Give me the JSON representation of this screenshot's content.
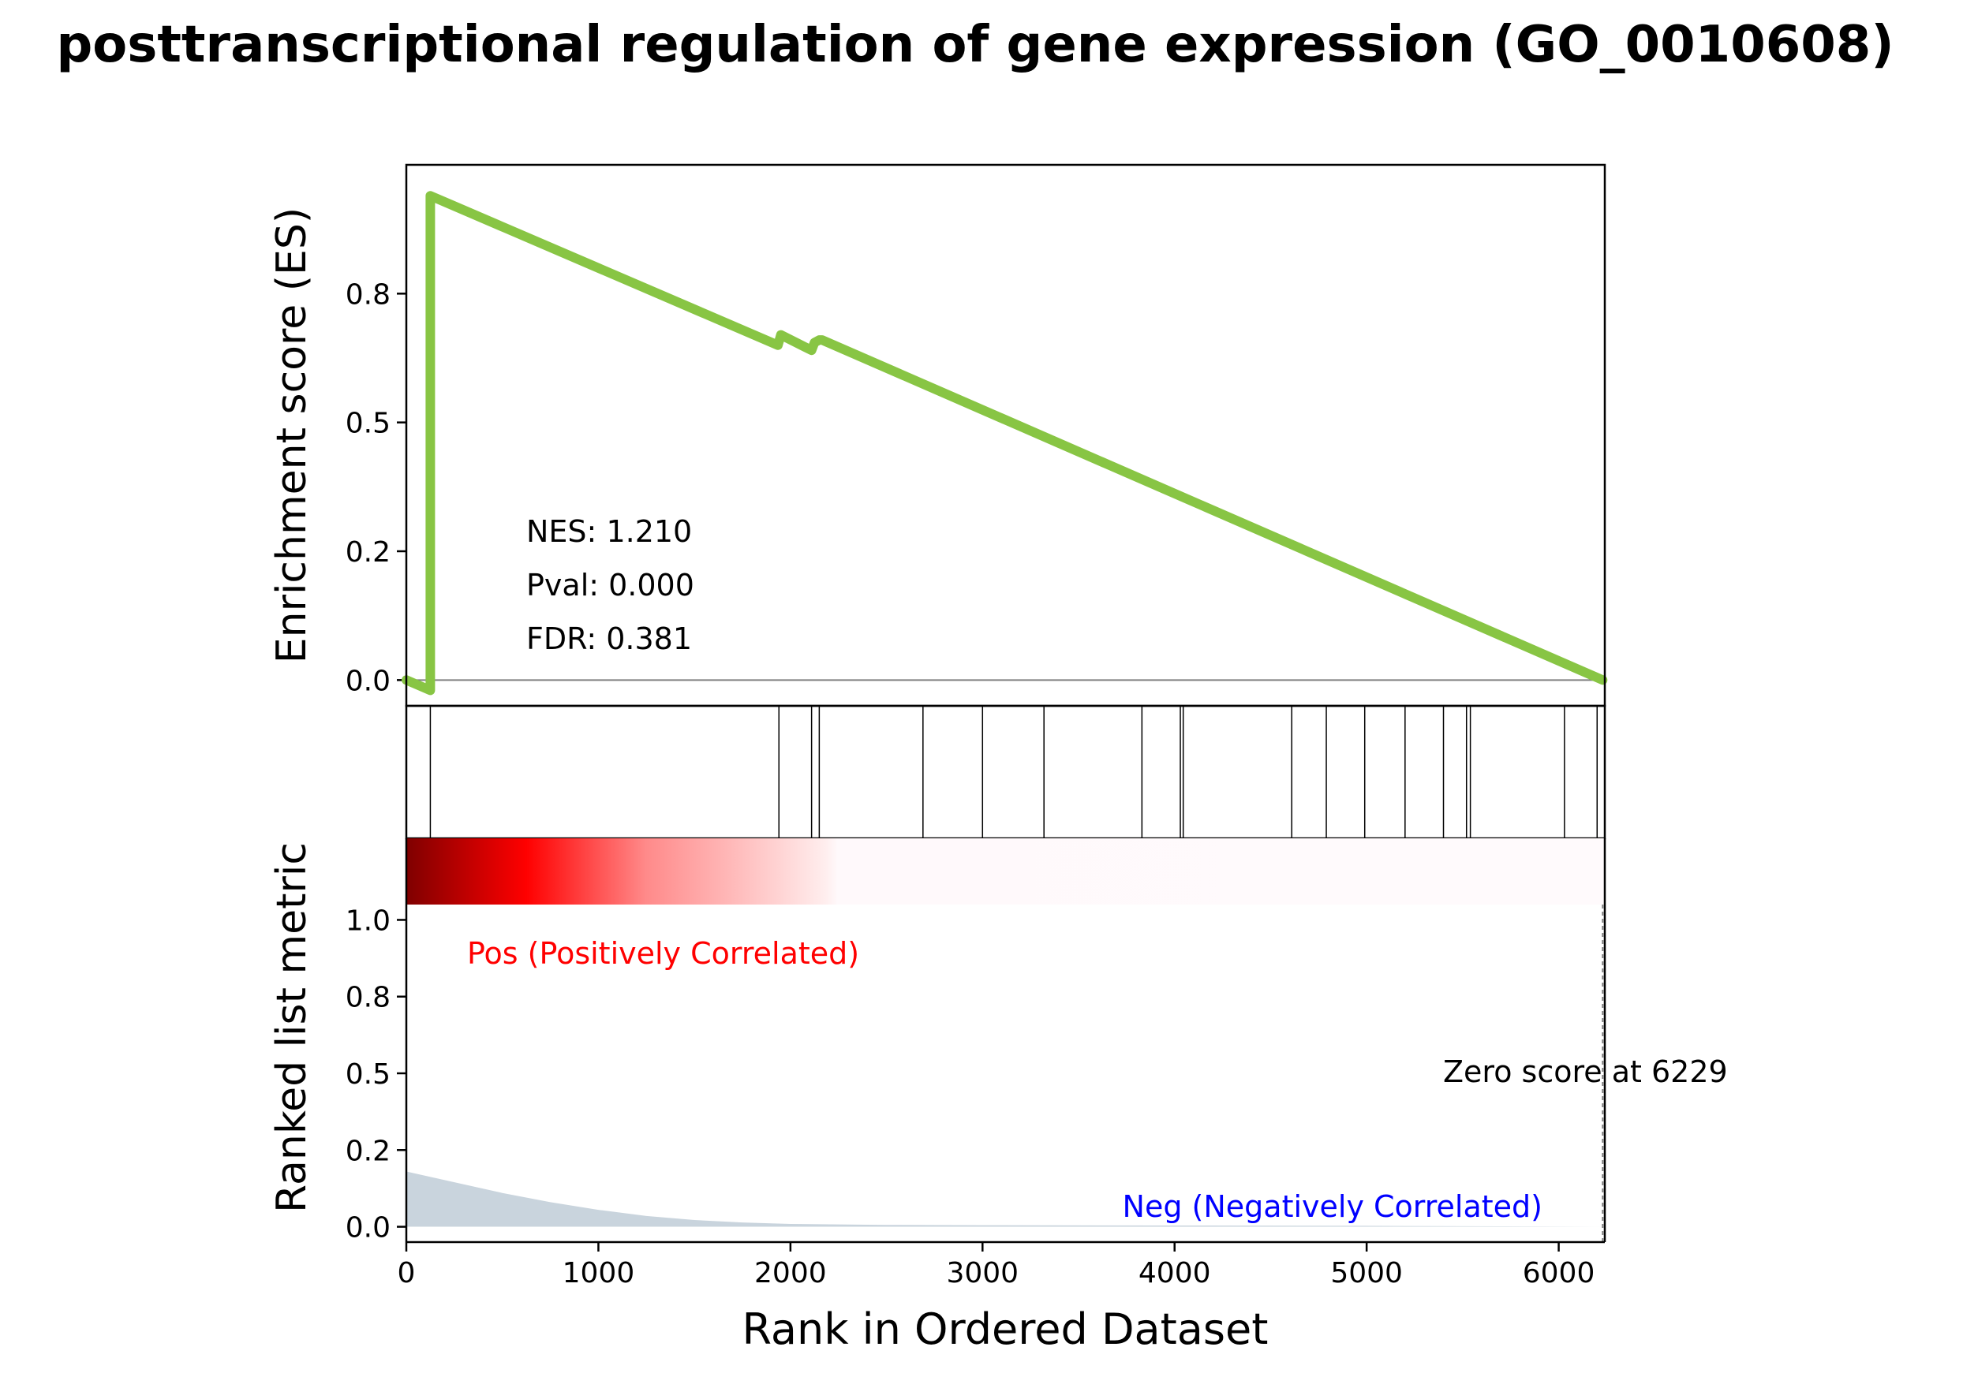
{
  "chart_data": {
    "type": "line",
    "title": "posttranscriptional regulation of gene expression (GO_0010608)",
    "xlabel": "Rank in Ordered Dataset",
    "xlim": [
      0,
      6240
    ],
    "x_ticks": [
      0,
      1000,
      2000,
      3000,
      4000,
      5000,
      6000
    ],
    "es_panel": {
      "ylabel": "Enrichment score (ES)",
      "ylim": [
        -0.05,
        1.0
      ],
      "y_ticks": [
        0.0,
        0.25,
        0.5,
        0.75
      ],
      "y_tick_labels": [
        "0.0",
        "0.2",
        "0.5",
        "0.8"
      ],
      "line_color": "#88c544",
      "series": [
        {
          "x": [
            0,
            125,
            125,
            1935,
            1950,
            2110,
            2125,
            2150,
            2165,
            6229
          ],
          "y": [
            0.0,
            -0.02,
            0.94,
            0.65,
            0.67,
            0.64,
            0.655,
            0.66,
            0.66,
            0.0
          ]
        }
      ],
      "annotations": [
        "NES: 1.210",
        "Pval: 0.000",
        "FDR: 0.381"
      ]
    },
    "hits": [
      125,
      1940,
      2110,
      2150,
      2690,
      3000,
      3320,
      3830,
      4030,
      4045,
      4610,
      4790,
      4990,
      5200,
      5400,
      5520,
      5540,
      6030,
      6200
    ],
    "ranked_panel": {
      "ylabel": "Ranked list metric",
      "ylim": [
        -0.05,
        1.05
      ],
      "y_ticks": [
        0.0,
        0.25,
        0.5,
        0.75,
        1.0
      ],
      "y_tick_labels": [
        "0.0",
        "0.2",
        "0.5",
        "0.8",
        "1.0"
      ],
      "fill_color": "#c9d4dd",
      "series": [
        {
          "x": [
            0,
            250,
            500,
            750,
            1000,
            1250,
            1500,
            1750,
            2000,
            2500,
            3000,
            4000,
            5000,
            6229
          ],
          "y": [
            0.18,
            0.145,
            0.11,
            0.08,
            0.055,
            0.035,
            0.022,
            0.014,
            0.009,
            0.006,
            0.005,
            0.004,
            0.003,
            0.0
          ]
        }
      ],
      "zero_score_x": 6229,
      "pos_label": "Pos (Positively Correlated)",
      "neg_label": "Neg (Negatively Correlated)",
      "zero_label": "Zero score at 6229",
      "pos_color": "#ff0000",
      "neg_color": "#0000ff"
    }
  }
}
